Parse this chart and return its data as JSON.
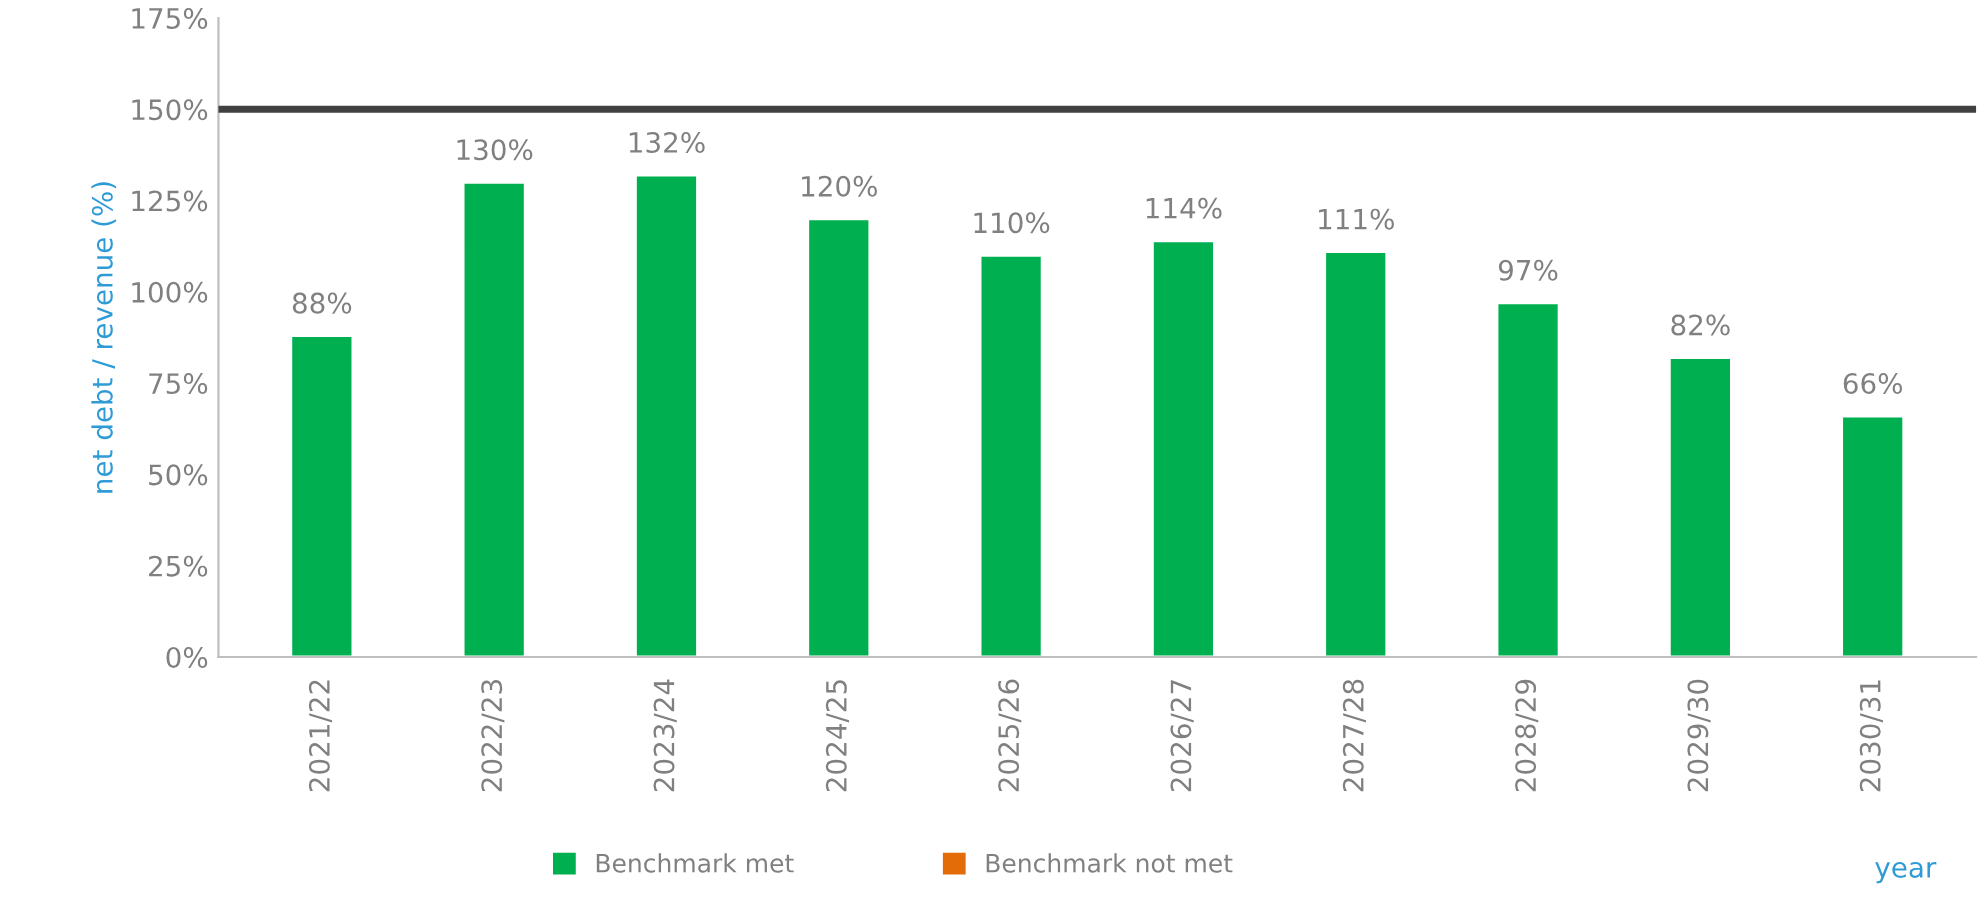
{
  "chart_data": {
    "type": "bar",
    "xlabel": "year",
    "ylabel": "net debt / revenue (%)",
    "categories": [
      "2021/22",
      "2022/23",
      "2023/24",
      "2024/25",
      "2025/26",
      "2026/27",
      "2027/28",
      "2028/29",
      "2029/30",
      "2030/31"
    ],
    "series": [
      {
        "name": "Benchmark met",
        "color": "#00b050",
        "values": [
          88,
          130,
          132,
          120,
          110,
          114,
          111,
          97,
          82,
          66
        ],
        "value_labels": [
          "88%",
          "130%",
          "132%",
          "120%",
          "110%",
          "114%",
          "111%",
          "97%",
          "82%",
          "66%"
        ]
      },
      {
        "name": "Benchmark not met",
        "color": "#e36c09",
        "values": [
          null,
          null,
          null,
          null,
          null,
          null,
          null,
          null,
          null,
          null
        ]
      }
    ],
    "ylim": [
      0,
      175
    ],
    "yticks": [
      {
        "value": 0,
        "label": "0%"
      },
      {
        "value": 25,
        "label": "25%"
      },
      {
        "value": 50,
        "label": "50%"
      },
      {
        "value": 75,
        "label": "75%"
      },
      {
        "value": 100,
        "label": "100%"
      },
      {
        "value": 125,
        "label": "125%"
      },
      {
        "value": 150,
        "label": "150%"
      },
      {
        "value": 175,
        "label": "175%"
      }
    ],
    "ref_lines": [
      {
        "axis": "y",
        "value": 150,
        "color": "#404040"
      }
    ],
    "grid": false,
    "legend": "bottom"
  }
}
